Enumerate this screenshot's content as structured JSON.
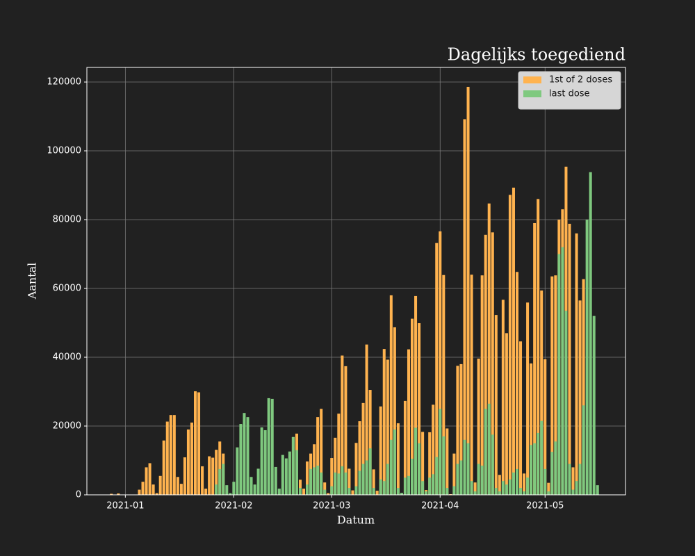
{
  "chart_data": {
    "type": "bar",
    "title": "Dagelijks toegediend",
    "xlabel": "Datum",
    "ylabel": "Aantal",
    "x": [
      "2020-12-28",
      "2020-12-29",
      "2020-12-30",
      "2020-12-31",
      "2021-01-01",
      "2021-01-02",
      "2021-01-03",
      "2021-01-04",
      "2021-01-05",
      "2021-01-06",
      "2021-01-07",
      "2021-01-08",
      "2021-01-09",
      "2021-01-10",
      "2021-01-11",
      "2021-01-12",
      "2021-01-13",
      "2021-01-14",
      "2021-01-15",
      "2021-01-16",
      "2021-01-17",
      "2021-01-18",
      "2021-01-19",
      "2021-01-20",
      "2021-01-21",
      "2021-01-22",
      "2021-01-23",
      "2021-01-24",
      "2021-01-25",
      "2021-01-26",
      "2021-01-27",
      "2021-01-28",
      "2021-01-29",
      "2021-01-30",
      "2021-01-31",
      "2021-02-01",
      "2021-02-02",
      "2021-02-03",
      "2021-02-04",
      "2021-02-05",
      "2021-02-06",
      "2021-02-07",
      "2021-02-08",
      "2021-02-09",
      "2021-02-10",
      "2021-02-11",
      "2021-02-12",
      "2021-02-13",
      "2021-02-14",
      "2021-02-15",
      "2021-02-16",
      "2021-02-17",
      "2021-02-18",
      "2021-02-19",
      "2021-02-20",
      "2021-02-21",
      "2021-02-22",
      "2021-02-23",
      "2021-02-24",
      "2021-02-25",
      "2021-02-26",
      "2021-02-27",
      "2021-02-28",
      "2021-03-01",
      "2021-03-02",
      "2021-03-03",
      "2021-03-04",
      "2021-03-05",
      "2021-03-06",
      "2021-03-07",
      "2021-03-08",
      "2021-03-09",
      "2021-03-10",
      "2021-03-11",
      "2021-03-12",
      "2021-03-13",
      "2021-03-14",
      "2021-03-15",
      "2021-03-16",
      "2021-03-17",
      "2021-03-18",
      "2021-03-19",
      "2021-03-20",
      "2021-03-21",
      "2021-03-22",
      "2021-03-23",
      "2021-03-24",
      "2021-03-25",
      "2021-03-26",
      "2021-03-27",
      "2021-03-28",
      "2021-03-29",
      "2021-03-30",
      "2021-03-31",
      "2021-04-01",
      "2021-04-02",
      "2021-04-03",
      "2021-04-04",
      "2021-04-05",
      "2021-04-06",
      "2021-04-07",
      "2021-04-08",
      "2021-04-09",
      "2021-04-10",
      "2021-04-11",
      "2021-04-12",
      "2021-04-13",
      "2021-04-14",
      "2021-04-15",
      "2021-04-16",
      "2021-04-17",
      "2021-04-18",
      "2021-04-19",
      "2021-04-20",
      "2021-04-21",
      "2021-04-22",
      "2021-04-23",
      "2021-04-24",
      "2021-04-25",
      "2021-04-26",
      "2021-04-27",
      "2021-04-28",
      "2021-04-29",
      "2021-04-30",
      "2021-05-01",
      "2021-05-02",
      "2021-05-03",
      "2021-05-04",
      "2021-05-05",
      "2021-05-06",
      "2021-05-07",
      "2021-05-08",
      "2021-05-09",
      "2021-05-10",
      "2021-05-11",
      "2021-05-12",
      "2021-05-13",
      "2021-05-14",
      "2021-05-15",
      "2021-05-16"
    ],
    "series": [
      {
        "name": "1st of 2 doses",
        "color": "#ffb34f",
        "values": [
          300,
          null,
          400,
          null,
          null,
          null,
          null,
          null,
          1500,
          3800,
          8000,
          9200,
          3000,
          500,
          5500,
          15800,
          21300,
          23200,
          23200,
          5200,
          3200,
          10900,
          19000,
          21000,
          30100,
          29800,
          8300,
          1800,
          11200,
          10800,
          13100,
          15500,
          12000,
          null,
          null,
          null,
          null,
          null,
          null,
          null,
          null,
          null,
          null,
          null,
          null,
          null,
          null,
          null,
          null,
          null,
          null,
          null,
          16800,
          17800,
          4400,
          1800,
          9700,
          12000,
          14700,
          22600,
          25000,
          3600,
          500,
          10700,
          16600,
          23600,
          40500,
          37400,
          7600,
          1300,
          15100,
          21400,
          26700,
          43700,
          30500,
          7400,
          1200,
          25700,
          42400,
          39300,
          58000,
          48700,
          20800,
          null,
          27300,
          42300,
          51200,
          57800,
          49900,
          18300,
          1400,
          18200,
          26200,
          73200,
          76600,
          63900,
          19300,
          200,
          12000,
          37500,
          38000,
          109200,
          118600,
          64000,
          3600,
          39600,
          63800,
          75600,
          84700,
          76300,
          52300,
          5800,
          56700,
          47000,
          87200,
          89300,
          64800,
          44600,
          6200,
          55900,
          38200,
          79000,
          86000,
          59400,
          39400,
          3500,
          63500,
          63800,
          80000,
          83000,
          95400,
          78800,
          8000,
          76000,
          56500,
          62700,
          null,
          null,
          null,
          null
        ]
      },
      {
        "name": "last dose",
        "color": "#7fc97f",
        "values": [
          null,
          null,
          null,
          null,
          null,
          null,
          null,
          null,
          null,
          null,
          null,
          null,
          null,
          null,
          null,
          null,
          null,
          null,
          null,
          null,
          null,
          null,
          null,
          null,
          null,
          null,
          null,
          null,
          null,
          null,
          3000,
          7500,
          9000,
          2800,
          500,
          3800,
          13800,
          20600,
          23800,
          22600,
          5200,
          3000,
          7600,
          19600,
          18800,
          28100,
          27900,
          8100,
          1800,
          11600,
          10600,
          12600,
          16800,
          13000,
          2000,
          null,
          3000,
          7500,
          8000,
          8500,
          6500,
          1500,
          null,
          2500,
          6500,
          6200,
          8300,
          6500,
          2000,
          null,
          2500,
          7000,
          9000,
          10000,
          13500,
          2000,
          null,
          4500,
          4000,
          9000,
          16000,
          19000,
          2000,
          600,
          5000,
          5500,
          10500,
          19500,
          15000,
          4000,
          1000,
          5000,
          6000,
          11000,
          25000,
          17000,
          2000,
          null,
          2500,
          9000,
          10000,
          16000,
          15000,
          4000,
          1000,
          9000,
          8500,
          25000,
          26500,
          17500,
          2000,
          1000,
          4000,
          3000,
          4500,
          6500,
          7500,
          2000,
          1000,
          5000,
          14500,
          15000,
          18000,
          21500,
          7500,
          1000,
          12500,
          15500,
          70000,
          72000,
          53500,
          9000,
          1500,
          4000,
          9000,
          26000,
          80000,
          93800,
          52000,
          2800
        ]
      }
    ],
    "xlim": [
      "2020-12-21",
      "2021-05-24"
    ],
    "xticks": [
      {
        "value": "2021-01-01",
        "label": "2021-01"
      },
      {
        "value": "2021-02-01",
        "label": "2021-02"
      },
      {
        "value": "2021-03-01",
        "label": "2021-03"
      },
      {
        "value": "2021-04-01",
        "label": "2021-04"
      },
      {
        "value": "2021-05-01",
        "label": "2021-05"
      }
    ],
    "ylim": [
      0,
      124250
    ],
    "yticks": [
      0,
      20000,
      40000,
      60000,
      80000,
      100000,
      120000
    ],
    "grid": true,
    "legend": "upper right"
  }
}
